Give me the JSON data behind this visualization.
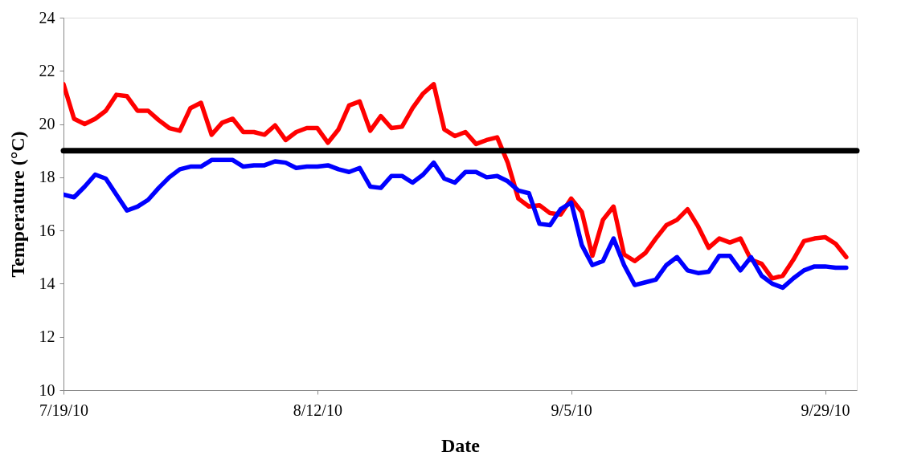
{
  "chart_data": {
    "type": "line",
    "xlabel": "Date",
    "ylabel": "Temperature (°C)",
    "x": [
      "2010-07-19",
      "2010-07-20",
      "2010-07-21",
      "2010-07-22",
      "2010-07-23",
      "2010-07-24",
      "2010-07-25",
      "2010-07-26",
      "2010-07-27",
      "2010-07-28",
      "2010-07-29",
      "2010-07-30",
      "2010-07-31",
      "2010-08-01",
      "2010-08-02",
      "2010-08-03",
      "2010-08-04",
      "2010-08-05",
      "2010-08-06",
      "2010-08-07",
      "2010-08-08",
      "2010-08-09",
      "2010-08-10",
      "2010-08-11",
      "2010-08-12",
      "2010-08-13",
      "2010-08-14",
      "2010-08-15",
      "2010-08-16",
      "2010-08-17",
      "2010-08-18",
      "2010-08-19",
      "2010-08-20",
      "2010-08-21",
      "2010-08-22",
      "2010-08-23",
      "2010-08-24",
      "2010-08-25",
      "2010-08-26",
      "2010-08-27",
      "2010-08-28",
      "2010-08-29",
      "2010-08-30",
      "2010-08-31",
      "2010-09-01",
      "2010-09-02",
      "2010-09-03",
      "2010-09-04",
      "2010-09-05",
      "2010-09-06",
      "2010-09-07",
      "2010-09-08",
      "2010-09-09",
      "2010-09-10",
      "2010-09-11",
      "2010-09-12",
      "2010-09-13",
      "2010-09-14",
      "2010-09-15",
      "2010-09-16",
      "2010-09-17",
      "2010-09-18",
      "2010-09-19",
      "2010-09-20",
      "2010-09-21",
      "2010-09-22",
      "2010-09-23",
      "2010-09-24",
      "2010-09-25",
      "2010-09-26",
      "2010-09-27",
      "2010-09-28",
      "2010-09-29",
      "2010-09-30",
      "2010-10-01"
    ],
    "series": [
      {
        "color": "#ff0000",
        "values": [
          21.5,
          20.2,
          20.0,
          20.2,
          20.5,
          21.1,
          21.05,
          20.5,
          20.5,
          20.15,
          19.85,
          19.75,
          20.6,
          20.8,
          19.6,
          20.05,
          20.2,
          19.7,
          19.7,
          19.6,
          19.95,
          19.4,
          19.7,
          19.85,
          19.85,
          19.3,
          19.8,
          20.7,
          20.85,
          19.75,
          20.3,
          19.85,
          19.9,
          20.6,
          21.15,
          21.5,
          19.8,
          19.55,
          19.7,
          19.25,
          19.4,
          19.5,
          18.55,
          17.2,
          16.9,
          16.95,
          16.65,
          16.6,
          17.2,
          16.7,
          15.05,
          16.4,
          16.9,
          15.1,
          14.85,
          15.15,
          15.7,
          16.2,
          16.4,
          16.8,
          16.15,
          15.35,
          15.7,
          15.55,
          15.7,
          14.9,
          14.75,
          14.2,
          14.3,
          14.9,
          15.6,
          15.7,
          15.75,
          15.5,
          15.0
        ]
      },
      {
        "color": "#0000ff",
        "values": [
          17.35,
          17.25,
          17.65,
          18.1,
          17.95,
          17.35,
          16.75,
          16.9,
          17.15,
          17.6,
          18.0,
          18.3,
          18.4,
          18.4,
          18.65,
          18.65,
          18.65,
          18.4,
          18.45,
          18.45,
          18.6,
          18.55,
          18.35,
          18.4,
          18.4,
          18.45,
          18.3,
          18.2,
          18.35,
          17.65,
          17.6,
          18.05,
          18.05,
          17.8,
          18.1,
          18.55,
          17.95,
          17.8,
          18.2,
          18.2,
          18.0,
          18.05,
          17.85,
          17.5,
          17.4,
          16.25,
          16.2,
          16.8,
          17.05,
          15.45,
          14.7,
          14.85,
          15.7,
          14.7,
          13.95,
          14.05,
          14.15,
          14.7,
          15.0,
          14.5,
          14.4,
          14.45,
          15.05,
          15.05,
          14.5,
          15.0,
          14.3,
          14.0,
          13.85,
          14.2,
          14.5,
          14.65,
          14.65,
          14.6,
          14.6
        ]
      }
    ],
    "ref_lines": [
      {
        "axis": "y",
        "value": 19,
        "color": "#000000"
      }
    ],
    "xlim": [
      "2010-07-19",
      "2010-10-02"
    ],
    "xticks": [
      {
        "value": "2010-07-19",
        "label": "7/19/10"
      },
      {
        "value": "2010-08-12",
        "label": "8/12/10"
      },
      {
        "value": "2010-09-05",
        "label": "9/5/10"
      },
      {
        "value": "2010-09-29",
        "label": "9/29/10"
      }
    ],
    "ylim": [
      10,
      24
    ],
    "yticks": [
      10,
      12,
      14,
      16,
      18,
      20,
      22,
      24
    ],
    "grid": false,
    "marker": "none",
    "line_style": "solid"
  }
}
